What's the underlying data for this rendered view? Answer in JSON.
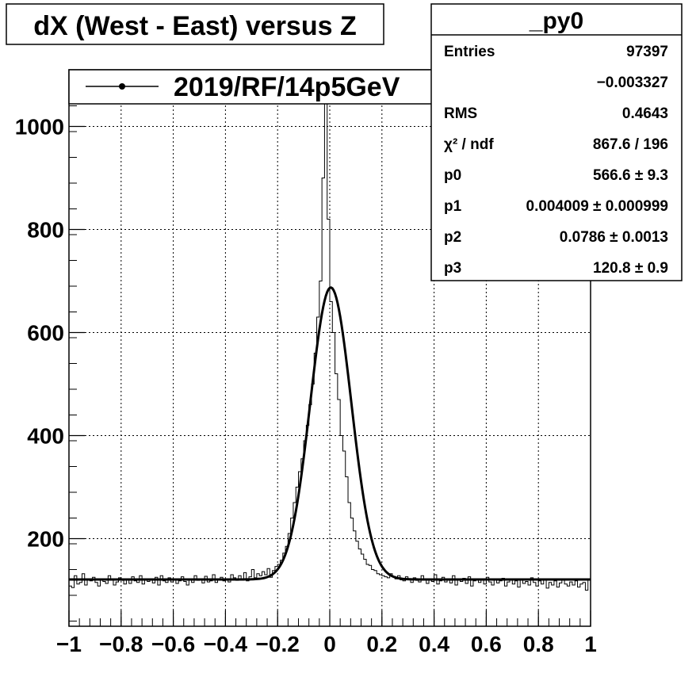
{
  "chart_data": {
    "type": "line",
    "title": "dX (West - East) versus Z",
    "xlabel": "",
    "ylabel": "",
    "xlim": [
      -1,
      1
    ],
    "ylim": [
      30,
      1110
    ],
    "grid": true,
    "x_ticks": [
      -1,
      -0.8,
      -0.6,
      -0.4,
      -0.2,
      0,
      0.2,
      0.4,
      0.6,
      0.8,
      1
    ],
    "x_tick_labels": [
      "−1",
      "−0.8",
      "−0.6",
      "−0.4",
      "−0.2",
      "0",
      "0.2",
      "0.4",
      "0.6",
      "0.8",
      "1"
    ],
    "y_ticks": [
      200,
      400,
      600,
      800,
      1000
    ],
    "y_tick_labels": [
      "200",
      "400",
      "600",
      "800",
      "1000"
    ],
    "legend": {
      "placement": "top-left",
      "entries": [
        "2019/RF/14p5GeV"
      ]
    },
    "stats_box": {
      "title": "_py0",
      "placement": "top-right",
      "rows": [
        {
          "label": "Entries",
          "value": "97397"
        },
        {
          "label": "",
          "value": "−0.003327"
        },
        {
          "label": "RMS",
          "value": "0.4643"
        },
        {
          "label": "χ² / ndf",
          "value": "867.6 / 196"
        },
        {
          "label": "p0",
          "value": "566.6 ± 9.3"
        },
        {
          "label": "p1",
          "value": "0.004009 ± 0.000999"
        },
        {
          "label": "p2",
          "value": "0.0786 ± 0.0013"
        },
        {
          "label": "p3",
          "value": "120.8 ± 0.9"
        }
      ]
    },
    "series": [
      {
        "kind": "histogram",
        "bin_width": 0.01,
        "x_start": -1.0,
        "values": [
          108,
          105,
          128,
          112,
          115,
          132,
          110,
          120,
          118,
          125,
          115,
          108,
          122,
          117,
          113,
          128,
          120,
          110,
          116,
          124,
          119,
          112,
          121,
          113,
          126,
          118,
          115,
          128,
          112,
          120,
          117,
          122,
          114,
          125,
          110,
          128,
          118,
          115,
          124,
          116,
          121,
          113,
          118,
          126,
          117,
          110,
          122,
          115,
          128,
          119,
          120,
          114,
          127,
          116,
          118,
          130,
          115,
          122,
          125,
          118,
          121,
          116,
          130,
          124,
          119,
          128,
          122,
          134,
          118,
          126,
          140,
          124,
          132,
          128,
          136,
          130,
          142,
          125,
          138,
          146,
          150,
          158,
          172,
          185,
          210,
          240,
          270,
          300,
          330,
          355,
          390,
          420,
          460,
          500,
          560,
          630,
          700,
          900,
          1110,
          820,
          660,
          600,
          520,
          470,
          400,
          370,
          320,
          270,
          240,
          215,
          195,
          180,
          170,
          160,
          150,
          148,
          140,
          138,
          132,
          130,
          128,
          126,
          124,
          132,
          127,
          122,
          128,
          120,
          118,
          126,
          121,
          115,
          124,
          119,
          116,
          128,
          120,
          113,
          122,
          117,
          130,
          112,
          118,
          125,
          116,
          121,
          114,
          128,
          110,
          120,
          117,
          123,
          113,
          126,
          108,
          118,
          122,
          115,
          120,
          112,
          125,
          116,
          110,
          120,
          114,
          118,
          123,
          108,
          116,
          121,
          112,
          118,
          106,
          120,
          113,
          117,
          110,
          124,
          115,
          108,
          118,
          112,
          120,
          104,
          115,
          110,
          118,
          106,
          114,
          120,
          112,
          108,
          116,
          110,
          118,
          106,
          112,
          115,
          100,
          122
        ]
      },
      {
        "kind": "fit",
        "function": "gaus + const",
        "p0": 566.6,
        "p1": 0.004009,
        "p2": 0.0786,
        "p3": 120.8
      }
    ]
  }
}
